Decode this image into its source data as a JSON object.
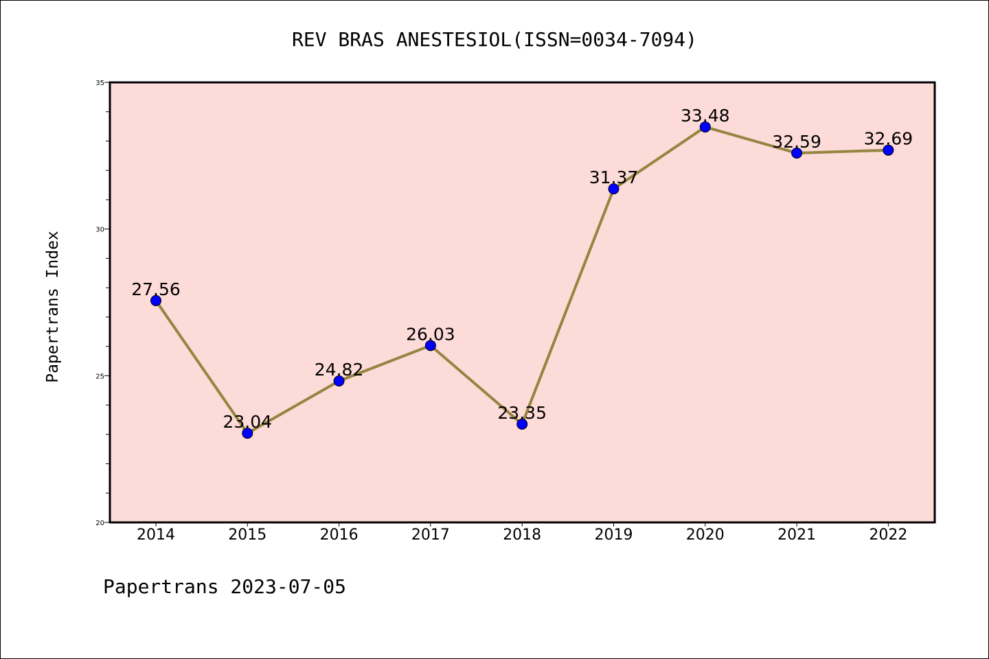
{
  "chart_data": {
    "type": "line",
    "title": "REV BRAS ANESTESIOL(ISSN=0034-7094)",
    "ylabel": "Papertrans Index",
    "xlabel": "",
    "footer": "Papertrans 2023-07-05",
    "categories": [
      "2014",
      "2015",
      "2016",
      "2017",
      "2018",
      "2019",
      "2020",
      "2021",
      "2022"
    ],
    "series": [
      {
        "values": [
          27.56,
          23.04,
          24.82,
          26.03,
          23.35,
          31.37,
          33.48,
          32.59,
          32.69
        ],
        "labels": [
          "27.56",
          "23.04",
          "24.82",
          "26.03",
          "23.35",
          "31.37",
          "33.48",
          "32.59",
          "32.69"
        ]
      }
    ],
    "ylim": [
      20,
      35
    ],
    "yticks": [
      "20",
      "25",
      "30",
      "35"
    ],
    "grid": false,
    "legend": "none",
    "colors": {
      "plot_background": "#fddbd8",
      "line": "#958541",
      "marker": "#0000ff"
    }
  }
}
